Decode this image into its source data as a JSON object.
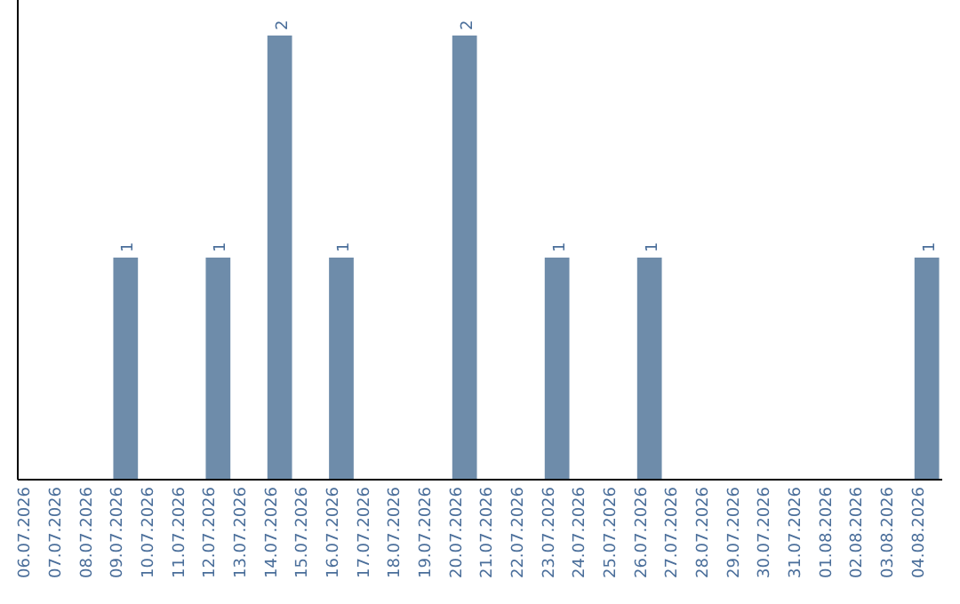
{
  "chart_data": {
    "type": "bar",
    "categories": [
      "06.07.2026",
      "07.07.2026",
      "08.07.2026",
      "09.07.2026",
      "10.07.2026",
      "11.07.2026",
      "12.07.2026",
      "13.07.2026",
      "14.07.2026",
      "15.07.2026",
      "16.07.2026",
      "17.07.2026",
      "18.07.2026",
      "19.07.2026",
      "20.07.2026",
      "21.07.2026",
      "22.07.2026",
      "23.07.2026",
      "24.07.2026",
      "25.07.2026",
      "26.07.2026",
      "27.07.2026",
      "28.07.2026",
      "29.07.2026",
      "30.07.2026",
      "31.07.2026",
      "01.08.2026",
      "02.08.2026",
      "03.08.2026",
      "04.08.2026"
    ],
    "values": [
      0,
      0,
      0,
      1,
      0,
      0,
      1,
      0,
      2,
      0,
      1,
      0,
      0,
      0,
      2,
      0,
      0,
      1,
      0,
      0,
      1,
      0,
      0,
      0,
      0,
      0,
      0,
      0,
      0,
      1
    ],
    "value_labels": [
      null,
      null,
      null,
      "1",
      null,
      null,
      "1",
      null,
      "2",
      null,
      "1",
      null,
      null,
      null,
      "2",
      null,
      null,
      "1",
      null,
      null,
      "1",
      null,
      null,
      null,
      null,
      null,
      null,
      null,
      null,
      "1"
    ],
    "color": "#6e8caa",
    "tick_labels": "x",
    "grid": false
  }
}
